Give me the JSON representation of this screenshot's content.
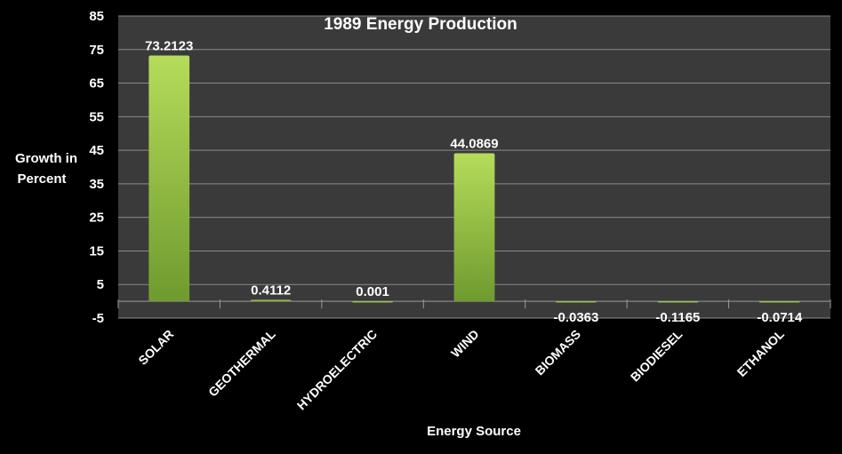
{
  "chart_data": {
    "type": "bar",
    "title": "1989 Energy Production",
    "xlabel": "Energy Source",
    "ylabel": [
      "Growth in",
      "Percent"
    ],
    "categories": [
      "SOLAR",
      "GEOTHERMAL",
      "HYDROELECTRIC",
      "WIND",
      "BIOMASS",
      "BIODIESEL",
      "ETHANOL"
    ],
    "values": [
      73.2123,
      0.4112,
      0.001,
      44.0869,
      -0.0363,
      -0.1165,
      -0.0714
    ],
    "data_labels": [
      "73.2123",
      "0.4112",
      "0.001",
      "44.0869",
      "-0.0363",
      "-0.1165",
      "-0.0714"
    ],
    "yticks": [
      -5,
      5,
      15,
      25,
      35,
      45,
      55,
      65,
      75,
      85
    ],
    "ylim": [
      -5,
      85
    ],
    "grid": true,
    "legend": "none",
    "colors": {
      "page_background": "#000000",
      "plot_background": "#3a3a3a",
      "gridline": "#8a8a8a",
      "bar_light": "#b5dc5a",
      "bar_dark": "#6f9a2e",
      "text": "#ffffff"
    }
  }
}
